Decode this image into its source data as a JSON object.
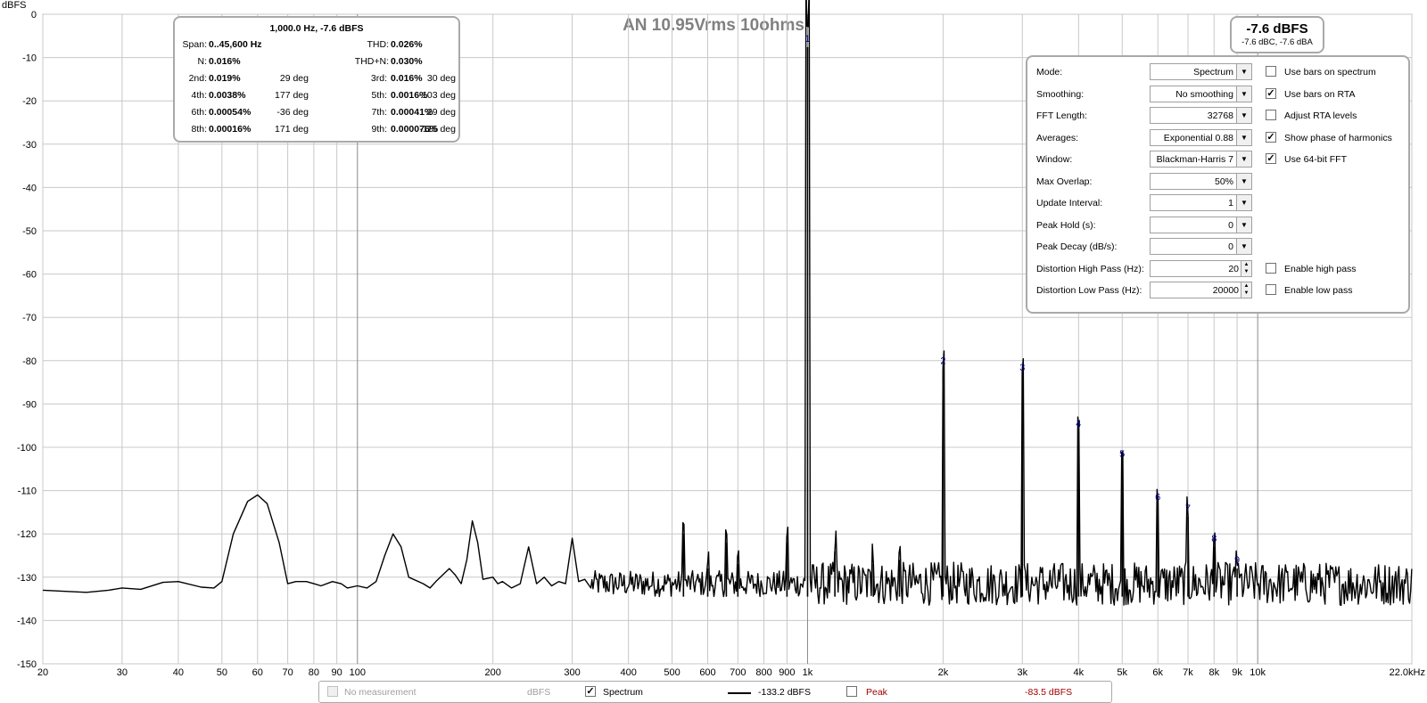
{
  "chart_data": {
    "type": "line",
    "title": "AN 10.95Vrms 10ohms",
    "ylabel": "dBFS",
    "xscale": "log",
    "xlim": [
      20,
      22000
    ],
    "ylim": [
      -150,
      0
    ],
    "grid": true,
    "y_ticks": [
      "0",
      "-10",
      "-20",
      "-30",
      "-40",
      "-50",
      "-60",
      "-70",
      "-80",
      "-90",
      "-100",
      "-110",
      "-120",
      "-130",
      "-140",
      "-150"
    ],
    "x_ticks": [
      {
        "v": 20,
        "t": "20"
      },
      {
        "v": 30,
        "t": "30"
      },
      {
        "v": 40,
        "t": "40"
      },
      {
        "v": 50,
        "t": "50"
      },
      {
        "v": 60,
        "t": "60"
      },
      {
        "v": 70,
        "t": "70"
      },
      {
        "v": 80,
        "t": "80"
      },
      {
        "v": 90,
        "t": "90"
      },
      {
        "v": 100,
        "t": "100"
      },
      {
        "v": 200,
        "t": "200"
      },
      {
        "v": 300,
        "t": "300"
      },
      {
        "v": 400,
        "t": "400"
      },
      {
        "v": 500,
        "t": "500"
      },
      {
        "v": 600,
        "t": "600"
      },
      {
        "v": 700,
        "t": "700"
      },
      {
        "v": 800,
        "t": "800"
      },
      {
        "v": 900,
        "t": "900"
      },
      {
        "v": 1000,
        "t": "1k"
      },
      {
        "v": 2000,
        "t": "2k"
      },
      {
        "v": 3000,
        "t": "3k"
      },
      {
        "v": 4000,
        "t": "4k"
      },
      {
        "v": 5000,
        "t": "5k"
      },
      {
        "v": 6000,
        "t": "6k"
      },
      {
        "v": 7000,
        "t": "7k"
      },
      {
        "v": 8000,
        "t": "8k"
      },
      {
        "v": 9000,
        "t": "9k"
      },
      {
        "v": 10000,
        "t": "10k"
      },
      {
        "v": 22000,
        "t": "22.0kHz"
      }
    ],
    "series": [
      {
        "name": "Spectrum",
        "color": "#000000",
        "noise_floor": -131.5,
        "points": [
          [
            20,
            -133
          ],
          [
            25,
            -133.5
          ],
          [
            28,
            -133
          ],
          [
            30,
            -132.5
          ],
          [
            33,
            -132.8
          ],
          [
            37,
            -131.2
          ],
          [
            40,
            -131
          ],
          [
            45,
            -132.3
          ],
          [
            48,
            -132.5
          ],
          [
            50,
            -131
          ],
          [
            53,
            -120
          ],
          [
            57,
            -112.5
          ],
          [
            60,
            -111
          ],
          [
            63,
            -113
          ],
          [
            67,
            -122
          ],
          [
            70,
            -131.5
          ],
          [
            73,
            -131
          ],
          [
            77,
            -131
          ],
          [
            80,
            -131.5
          ],
          [
            83,
            -132
          ],
          [
            88,
            -131
          ],
          [
            92,
            -131.5
          ],
          [
            95,
            -132.5
          ],
          [
            100,
            -132
          ],
          [
            105,
            -132.5
          ],
          [
            110,
            -131
          ],
          [
            115,
            -125
          ],
          [
            120,
            -120
          ],
          [
            125,
            -123
          ],
          [
            130,
            -130
          ],
          [
            140,
            -131.5
          ],
          [
            145,
            -132.5
          ],
          [
            150,
            -130.8
          ],
          [
            160,
            -128
          ],
          [
            165,
            -129.5
          ],
          [
            170,
            -131.5
          ],
          [
            175,
            -126
          ],
          [
            180,
            -117
          ],
          [
            185,
            -122
          ],
          [
            190,
            -130.5
          ],
          [
            200,
            -130
          ],
          [
            205,
            -131.5
          ],
          [
            210,
            -131
          ],
          [
            220,
            -132.5
          ],
          [
            230,
            -131.5
          ],
          [
            240,
            -123
          ],
          [
            250,
            -131.5
          ],
          [
            260,
            -130
          ],
          [
            270,
            -132
          ],
          [
            280,
            -131
          ],
          [
            290,
            -131.5
          ],
          [
            300,
            -121
          ],
          [
            310,
            -131
          ],
          [
            320,
            -130.5
          ],
          [
            330,
            -132.5
          ]
        ],
        "peaks": [
          {
            "f": 530,
            "db": -120
          },
          {
            "f": 600,
            "db": -128
          },
          {
            "f": 660,
            "db": -122
          },
          {
            "f": 700,
            "db": -127
          },
          {
            "f": 900,
            "db": -122
          },
          {
            "f": 1000,
            "db": -7.6
          },
          {
            "f": 1150,
            "db": -124
          },
          {
            "f": 1400,
            "db": -127
          },
          {
            "f": 1600,
            "db": -126
          },
          {
            "f": 2000,
            "db": -82
          },
          {
            "f": 3000,
            "db": -83.5
          },
          {
            "f": 4000,
            "db": -96.5
          },
          {
            "f": 5000,
            "db": -103.5
          },
          {
            "f": 6000,
            "db": -113.5
          },
          {
            "f": 7000,
            "db": -116
          },
          {
            "f": 8000,
            "db": -123
          },
          {
            "f": 9000,
            "db": -128
          }
        ]
      }
    ],
    "annotations": [
      {
        "label": "1",
        "f": 1000,
        "db": -7.6
      },
      {
        "label": "2",
        "f": 2000,
        "db": -82
      },
      {
        "label": "3",
        "f": 3000,
        "db": -83.5
      },
      {
        "label": "4",
        "f": 4000,
        "db": -96.5
      },
      {
        "label": "5",
        "f": 5000,
        "db": -103.5
      },
      {
        "label": "6",
        "f": 6000,
        "db": -113.5
      },
      {
        "label": "7",
        "f": 7000,
        "db": -116
      },
      {
        "label": "8",
        "f": 8000,
        "db": -123
      },
      {
        "label": "9",
        "f": 9000,
        "db": -128
      }
    ],
    "colors": {
      "grid": "#c8c8c8",
      "title": "#808080",
      "annotation": "#00008b",
      "axis": "#000000"
    }
  },
  "distortion": {
    "header": "1,000.0 Hz, -7.6 dBFS",
    "span_label": "Span:",
    "span_value": "0..45,600 Hz",
    "thd_label": "THD:",
    "thd_value": "0.026%",
    "n_label": "N:",
    "n_value": "0.016%",
    "thdn_label": "THD+N:",
    "thdn_value": "0.030%",
    "rows": [
      {
        "l1": "2nd:",
        "v1": "0.019%",
        "p1": "29 deg",
        "l2": "3rd:",
        "v2": "0.016%",
        "p2": "30 deg"
      },
      {
        "l1": "4th:",
        "v1": "0.0038%",
        "p1": "177 deg",
        "l2": "5th:",
        "v2": "0.0016%",
        "p2": "-103 deg"
      },
      {
        "l1": "6th:",
        "v1": "0.00054%",
        "p1": "-36 deg",
        "l2": "7th:",
        "v2": "0.00041%",
        "p2": "29 deg"
      },
      {
        "l1": "8th:",
        "v1": "0.00016%",
        "p1": "171 deg",
        "l2": "9th:",
        "v2": "0.000076%",
        "p2": "-115 deg"
      }
    ]
  },
  "level": {
    "main": "-7.6 dBFS",
    "sub": "-7.6 dBC, -7.6 dBA"
  },
  "settings": {
    "rows": [
      {
        "label": "Mode:",
        "value": "Spectrum",
        "kind": "dropdown",
        "check_label": "Use bars on spectrum",
        "checked": false
      },
      {
        "label": "Smoothing:",
        "value": "No  smoothing",
        "kind": "dropdown",
        "check_label": "Use bars on RTA",
        "checked": true
      },
      {
        "label": "FFT Length:",
        "value": "32768",
        "kind": "dropdown",
        "check_label": "Adjust RTA levels",
        "checked": false
      },
      {
        "label": "Averages:",
        "value": "Exponential 0.88",
        "kind": "dropdown",
        "check_label": "Show phase of harmonics",
        "checked": true
      },
      {
        "label": "Window:",
        "value": "Blackman-Harris 7",
        "kind": "dropdown",
        "check_label": "Use 64-bit FFT",
        "checked": true
      },
      {
        "label": "Max Overlap:",
        "value": "50%",
        "kind": "dropdown"
      },
      {
        "label": "Update Interval:",
        "value": "1",
        "kind": "dropdown"
      },
      {
        "label": "Peak Hold (s):",
        "value": "0",
        "kind": "dropdown"
      },
      {
        "label": "Peak Decay (dB/s):",
        "value": "0",
        "kind": "dropdown"
      },
      {
        "label": "Distortion High Pass (Hz):",
        "value": "20",
        "kind": "spin",
        "check_label": "Enable high pass",
        "checked": false
      },
      {
        "label": "Distortion Low Pass (Hz):",
        "value": "20000",
        "kind": "spin",
        "check_label": "Enable low pass",
        "checked": false
      }
    ]
  },
  "legend": {
    "no_measurement": "No measurement",
    "unit": "dBFS",
    "spectrum_label": "Spectrum",
    "spectrum_value": "-133.2 dBFS",
    "peak_label": "Peak",
    "peak_value": "-83.5 dBFS"
  }
}
